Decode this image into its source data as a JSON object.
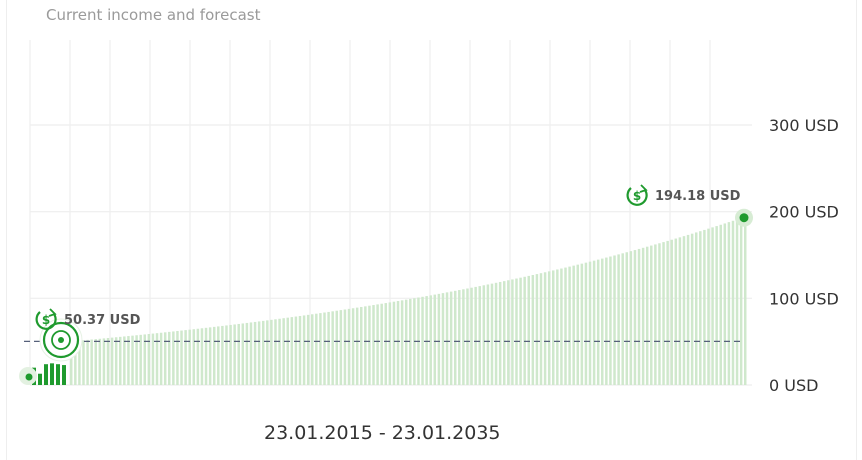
{
  "header": {
    "title": "Current income and forecast"
  },
  "footer": {
    "date_range": "23.01.2015 - 23.01.2035"
  },
  "colors": {
    "bar_forecast": "#cfe8cc",
    "bar_current": "#1f9a2e",
    "accent": "#1f9a2e",
    "dashed_line": "#56607a",
    "grid": "#eeeeee"
  },
  "chart_data": {
    "type": "bar",
    "title": "Current income and forecast",
    "ylabel": "",
    "xlabel": "",
    "ylim": [
      0,
      300
    ],
    "yticks": [
      0,
      100,
      200,
      300
    ],
    "ytick_labels": [
      "0 USD",
      "100 USD",
      "200 USD",
      "300 USD"
    ],
    "x_range": [
      "23.01.2015",
      "23.01.2035"
    ],
    "current_bars": [
      20,
      13,
      24,
      25,
      24,
      23
    ],
    "forecast": {
      "start": 50.37,
      "end": 194.18,
      "count": 166
    },
    "reference_line": 50.37,
    "annotations": [
      {
        "label": "50.37 USD",
        "value": 50.37,
        "icon": "dollar-cycle-icon"
      },
      {
        "label": "194.18 USD",
        "value": 194.18,
        "icon": "dollar-cycle-icon"
      }
    ],
    "grid": true
  }
}
